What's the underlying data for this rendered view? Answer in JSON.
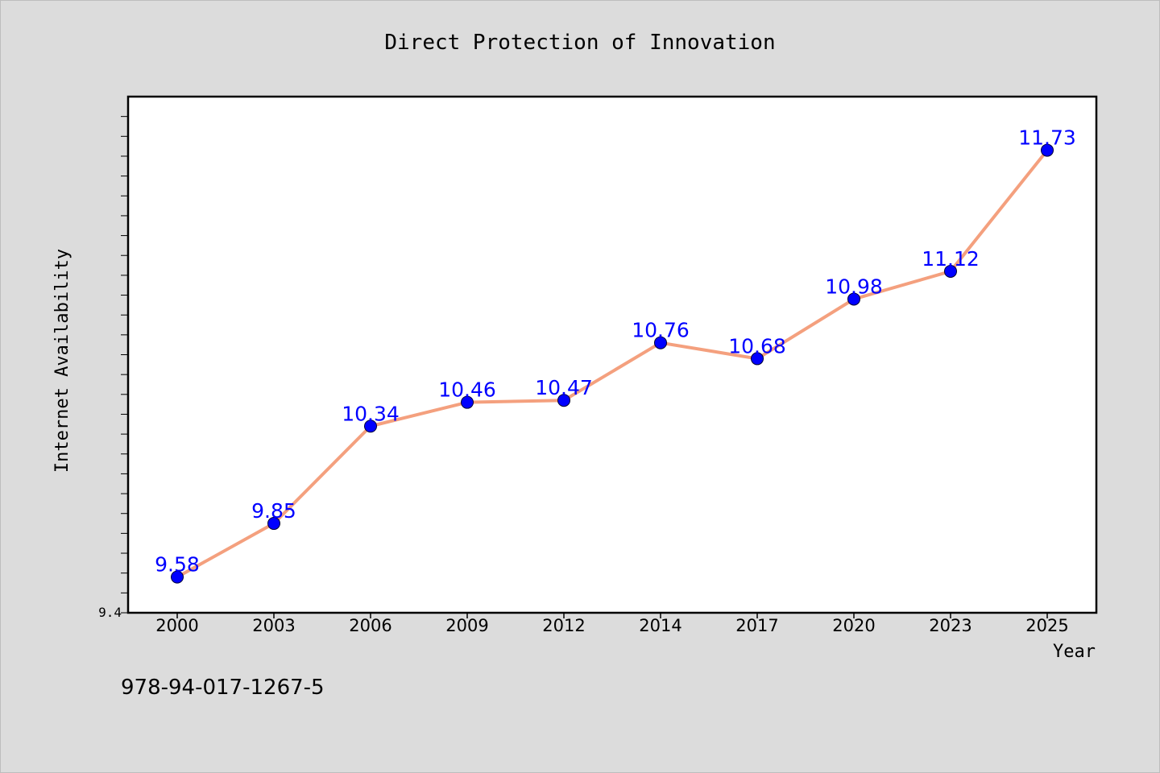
{
  "chart_data": {
    "type": "line",
    "title": "Direct Protection of Innovation",
    "xlabel": "Year",
    "ylabel": "Internet Availability",
    "categories": [
      "2000",
      "2003",
      "2006",
      "2009",
      "2012",
      "2014",
      "2017",
      "2020",
      "2023",
      "2025"
    ],
    "series": [
      {
        "values": [
          9.58,
          9.85,
          10.34,
          10.46,
          10.47,
          10.76,
          10.68,
          10.98,
          11.12,
          11.73
        ],
        "labels": [
          "9.58",
          "9.85",
          "10.34",
          "10.46",
          "10.47",
          "10.76",
          "10.68",
          "10.98",
          "11.12",
          "11.73"
        ]
      }
    ],
    "ylim": [
      9.4,
      12.0
    ],
    "y_tick_label": "9.4",
    "grid": false,
    "legend": "none",
    "colors": {
      "line": "#f4a07e",
      "marker": "#0000ff",
      "data_label": "#0000ff",
      "background": "#dcdcdc",
      "plot_background": "#ffffff"
    }
  },
  "footer": {
    "isbn": "978-94-017-1267-5"
  }
}
